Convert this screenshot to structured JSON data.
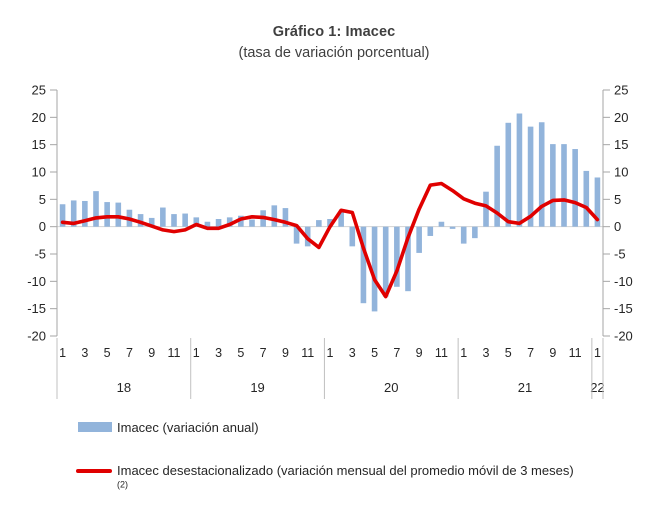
{
  "header": {
    "title": "Gráfico 1: Imacec",
    "subtitle": "(tasa de variación porcentual)"
  },
  "legend": {
    "bar": {
      "label": "Imacec (variación anual)",
      "color": "#92b4db"
    },
    "line": {
      "label": "Imacec desestacionalizado (variación mensual del promedio móvil de 3 meses)",
      "sup": "(2)",
      "color": "#e00000"
    }
  },
  "chart_data": {
    "type": "combo",
    "title": "Gráfico 1: Imacec",
    "subtitle": "(tasa de variación porcentual)",
    "xlabel": "",
    "ylabel": "",
    "ylim": [
      -20,
      25
    ],
    "ytick_step": 5,
    "grid": "zero-line-only",
    "dual_axis_mirrored": true,
    "legend_position": "bottom",
    "x_structure": {
      "years": [
        {
          "label": "18",
          "months": 12
        },
        {
          "label": "19",
          "months": 12
        },
        {
          "label": "20",
          "months": 12
        },
        {
          "label": "21",
          "months": 12
        },
        {
          "label": "22",
          "months": 1
        }
      ],
      "month_tick_labels": [
        "1",
        "3",
        "5",
        "7",
        "9",
        "11"
      ]
    },
    "series": [
      {
        "name": "Imacec (variación anual)",
        "type": "bar",
        "color": "#92b4db",
        "values": [
          4.1,
          4.8,
          4.7,
          6.5,
          4.5,
          4.4,
          3.1,
          2.3,
          1.6,
          3.5,
          2.3,
          2.4,
          1.7,
          0.9,
          1.4,
          1.7,
          2.0,
          1.3,
          3.0,
          3.9,
          3.4,
          -3.1,
          -3.6,
          1.2,
          1.4,
          2.7,
          -3.6,
          -14.0,
          -15.5,
          -12.8,
          -11.0,
          -11.8,
          -4.8,
          -1.7,
          0.9,
          -0.4,
          -3.1,
          -2.1,
          6.4,
          14.8,
          19.0,
          20.7,
          18.3,
          19.1,
          15.1,
          15.1,
          14.2,
          10.2,
          9.0
        ]
      },
      {
        "name": "Imacec desestacionalizado (variación mensual del promedio móvil de 3 meses)(2)",
        "type": "line",
        "color": "#e00000",
        "values": [
          0.8,
          0.6,
          1.1,
          1.6,
          1.8,
          1.8,
          1.4,
          0.8,
          0.1,
          -0.6,
          -0.9,
          -0.6,
          0.4,
          -0.3,
          -0.3,
          0.4,
          1.4,
          1.8,
          1.7,
          1.3,
          0.8,
          0.2,
          -2.2,
          -3.8,
          0.0,
          3.0,
          2.6,
          -3.9,
          -9.7,
          -12.8,
          -8.1,
          -2.0,
          3.2,
          7.6,
          7.9,
          6.6,
          5.1,
          4.3,
          3.8,
          2.5,
          0.9,
          0.6,
          1.9,
          3.7,
          4.8,
          4.9,
          4.4,
          3.5,
          1.3
        ]
      }
    ]
  },
  "colors": {
    "axis_line": "#a6a6a6",
    "axis_text": "#262626",
    "zero_gridline": "#d3d3d3",
    "year_separator": "#c0c0c0",
    "title_text": "#3f3f3f",
    "background": "#ffffff"
  }
}
